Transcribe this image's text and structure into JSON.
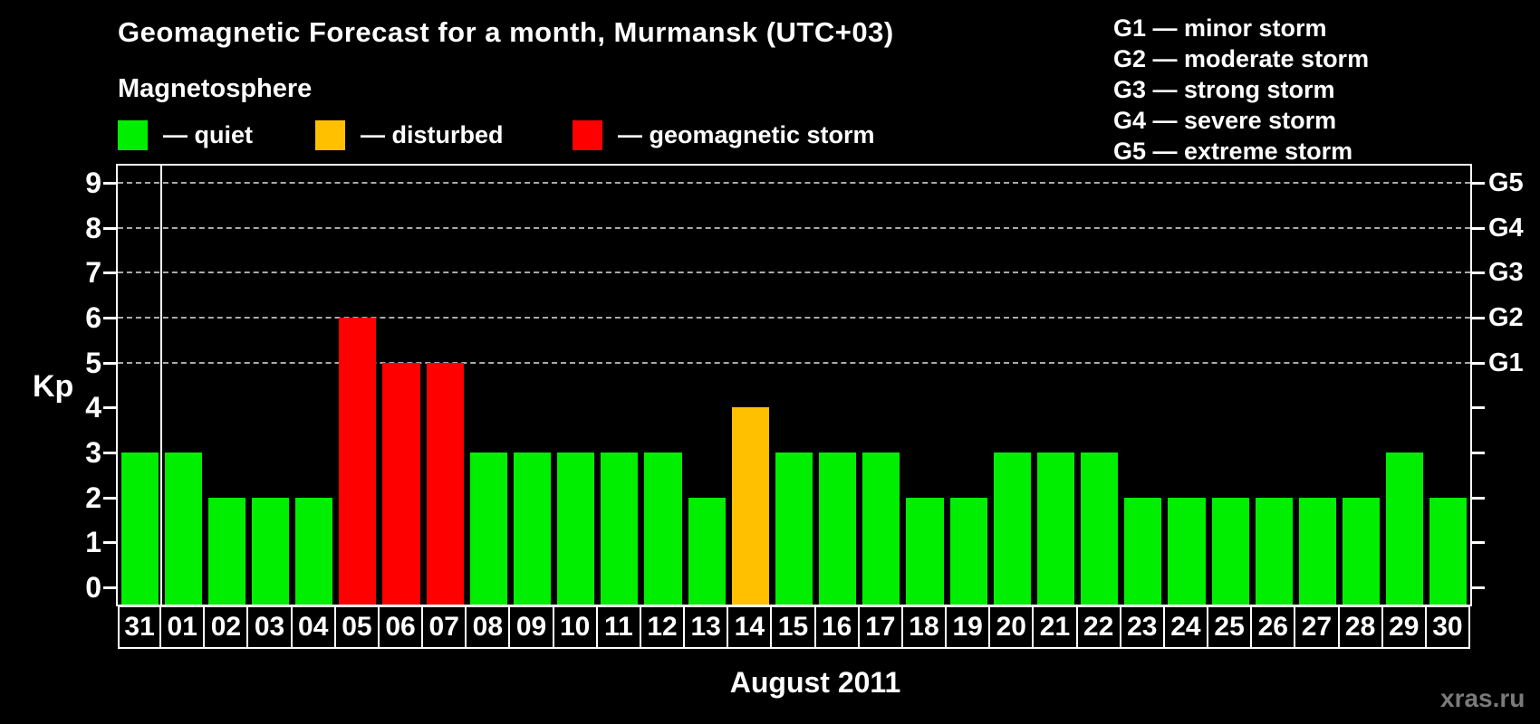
{
  "header": {
    "title": "Geomagnetic Forecast for a month, Murmansk (UTC+03)",
    "subtitle": "Magnetosphere",
    "legend": [
      {
        "status": "quiet",
        "label": "— quiet",
        "color": "#00ee00"
      },
      {
        "status": "disturbed",
        "label": "— disturbed",
        "color": "#ffc000"
      },
      {
        "status": "storm",
        "label": "— geomagnetic storm",
        "color": "#ff0000"
      }
    ]
  },
  "g_scale_legend": {
    "items": [
      "G1 — minor storm",
      "G2 — moderate storm",
      "G3 — strong storm",
      "G4 — severe storm",
      "G5 — extreme storm"
    ]
  },
  "watermark": "xras.ru",
  "chart_data": {
    "type": "bar",
    "title": "Geomagnetic Forecast for a month, Murmansk (UTC+03)",
    "xlabel": "August 2011",
    "ylabel": "Kp",
    "ylim": [
      0,
      9
    ],
    "yticks": [
      0,
      1,
      2,
      3,
      4,
      5,
      6,
      7,
      8,
      9
    ],
    "grid": "horizontal dashed gray lines at Kp 5,6,7,8,9",
    "legend_position": "top-left",
    "right_axis_labels": [
      {
        "kp": 5,
        "label": "G1"
      },
      {
        "kp": 6,
        "label": "G2"
      },
      {
        "kp": 7,
        "label": "G3"
      },
      {
        "kp": 8,
        "label": "G4"
      },
      {
        "kp": 9,
        "label": "G5"
      }
    ],
    "categories": [
      "31",
      "01",
      "02",
      "03",
      "04",
      "05",
      "06",
      "07",
      "08",
      "09",
      "10",
      "11",
      "12",
      "13",
      "14",
      "15",
      "16",
      "17",
      "18",
      "19",
      "20",
      "21",
      "22",
      "23",
      "24",
      "25",
      "26",
      "27",
      "28",
      "29",
      "30"
    ],
    "values": [
      3,
      3,
      2,
      2,
      2,
      6,
      5,
      5,
      3,
      3,
      3,
      3,
      3,
      2,
      4,
      3,
      3,
      3,
      2,
      2,
      3,
      3,
      3,
      2,
      2,
      2,
      2,
      2,
      2,
      3,
      2
    ],
    "statuses": [
      "quiet",
      "quiet",
      "quiet",
      "quiet",
      "quiet",
      "storm",
      "storm",
      "storm",
      "quiet",
      "quiet",
      "quiet",
      "quiet",
      "quiet",
      "quiet",
      "disturbed",
      "quiet",
      "quiet",
      "quiet",
      "quiet",
      "quiet",
      "quiet",
      "quiet",
      "quiet",
      "quiet",
      "quiet",
      "quiet",
      "quiet",
      "quiet",
      "quiet",
      "quiet",
      "quiet"
    ],
    "separator_after_category": "31",
    "colors": {
      "quiet": "#00ee00",
      "disturbed": "#ffc000",
      "storm": "#ff0000"
    }
  },
  "colors": {
    "background": "#000000",
    "text": "#ffffff",
    "grid_line": "#aaaaaa",
    "axis": "#ffffff",
    "watermark": "#7a7a7a"
  }
}
